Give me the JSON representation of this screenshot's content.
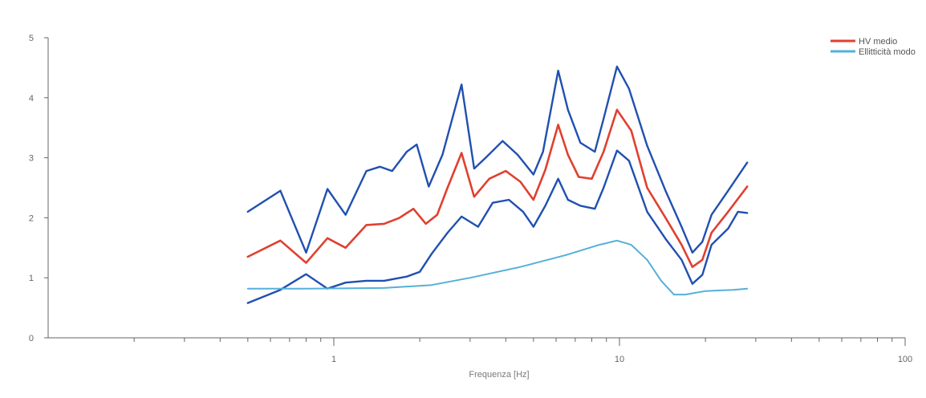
{
  "chart_data": {
    "type": "line",
    "title": "",
    "xlabel": "Frequenza [Hz]",
    "ylabel": "",
    "xscale": "log",
    "xlim": [
      0.1,
      100
    ],
    "ylim": [
      0,
      5
    ],
    "grid": false,
    "legend_position": "top-right",
    "x_ticks": [
      {
        "value": 1,
        "label": "1"
      },
      {
        "value": 10,
        "label": "10"
      },
      {
        "value": 100,
        "label": "100"
      }
    ],
    "y_ticks": [
      {
        "value": 0,
        "label": "0"
      },
      {
        "value": 1,
        "label": "1"
      },
      {
        "value": 2,
        "label": "2"
      },
      {
        "value": 3,
        "label": "3"
      },
      {
        "value": 4,
        "label": "4"
      },
      {
        "value": 5,
        "label": "5"
      }
    ],
    "legend": [
      {
        "label": "HV medio",
        "color": "#e04030"
      },
      {
        "label": "Ellitticità modo",
        "color": "#55b0d8"
      }
    ],
    "series": [
      {
        "name": "HV medio",
        "color": "#e04030",
        "points": [
          [
            0.5,
            1.35
          ],
          [
            0.65,
            1.62
          ],
          [
            0.8,
            1.25
          ],
          [
            0.95,
            1.66
          ],
          [
            1.1,
            1.5
          ],
          [
            1.3,
            1.88
          ],
          [
            1.5,
            1.9
          ],
          [
            1.7,
            2.0
          ],
          [
            1.9,
            2.15
          ],
          [
            2.1,
            1.9
          ],
          [
            2.3,
            2.05
          ],
          [
            2.5,
            2.5
          ],
          [
            2.8,
            3.08
          ],
          [
            3.1,
            2.35
          ],
          [
            3.5,
            2.65
          ],
          [
            4.0,
            2.78
          ],
          [
            4.5,
            2.6
          ],
          [
            5.0,
            2.3
          ],
          [
            5.5,
            2.8
          ],
          [
            6.1,
            3.55
          ],
          [
            6.6,
            3.05
          ],
          [
            7.2,
            2.68
          ],
          [
            8.0,
            2.65
          ],
          [
            8.8,
            3.1
          ],
          [
            9.8,
            3.8
          ],
          [
            11.0,
            3.45
          ],
          [
            12.5,
            2.5
          ],
          [
            14.5,
            2.0
          ],
          [
            16.5,
            1.55
          ],
          [
            18.0,
            1.18
          ],
          [
            19.5,
            1.3
          ],
          [
            21.0,
            1.75
          ],
          [
            24.0,
            2.1
          ],
          [
            28.0,
            2.52
          ]
        ]
      },
      {
        "name": "",
        "color": "#2050b0",
        "points": [
          [
            0.5,
            2.1
          ],
          [
            0.65,
            2.45
          ],
          [
            0.8,
            1.42
          ],
          [
            0.95,
            2.48
          ],
          [
            1.1,
            2.05
          ],
          [
            1.3,
            2.78
          ],
          [
            1.45,
            2.85
          ],
          [
            1.6,
            2.78
          ],
          [
            1.8,
            3.1
          ],
          [
            1.95,
            3.22
          ],
          [
            2.15,
            2.52
          ],
          [
            2.4,
            3.05
          ],
          [
            2.8,
            4.22
          ],
          [
            3.1,
            2.82
          ],
          [
            3.4,
            3.0
          ],
          [
            3.9,
            3.28
          ],
          [
            4.4,
            3.05
          ],
          [
            5.0,
            2.72
          ],
          [
            5.4,
            3.1
          ],
          [
            6.1,
            4.45
          ],
          [
            6.6,
            3.8
          ],
          [
            7.3,
            3.25
          ],
          [
            8.2,
            3.1
          ],
          [
            8.8,
            3.65
          ],
          [
            9.8,
            4.52
          ],
          [
            10.8,
            4.15
          ],
          [
            12.5,
            3.2
          ],
          [
            14.5,
            2.45
          ],
          [
            16.5,
            1.85
          ],
          [
            18.0,
            1.42
          ],
          [
            19.5,
            1.6
          ],
          [
            21.0,
            2.05
          ],
          [
            24.0,
            2.45
          ],
          [
            28.0,
            2.92
          ]
        ]
      },
      {
        "name": "",
        "color": "#2050b0",
        "points": [
          [
            0.5,
            0.58
          ],
          [
            0.65,
            0.8
          ],
          [
            0.8,
            1.06
          ],
          [
            0.95,
            0.82
          ],
          [
            1.1,
            0.92
          ],
          [
            1.3,
            0.95
          ],
          [
            1.5,
            0.95
          ],
          [
            1.8,
            1.02
          ],
          [
            2.0,
            1.1
          ],
          [
            2.2,
            1.4
          ],
          [
            2.5,
            1.75
          ],
          [
            2.8,
            2.02
          ],
          [
            3.2,
            1.85
          ],
          [
            3.6,
            2.25
          ],
          [
            4.1,
            2.3
          ],
          [
            4.6,
            2.1
          ],
          [
            5.0,
            1.85
          ],
          [
            5.5,
            2.2
          ],
          [
            6.1,
            2.65
          ],
          [
            6.6,
            2.3
          ],
          [
            7.3,
            2.2
          ],
          [
            8.2,
            2.15
          ],
          [
            8.8,
            2.5
          ],
          [
            9.8,
            3.12
          ],
          [
            10.8,
            2.95
          ],
          [
            12.5,
            2.1
          ],
          [
            14.5,
            1.65
          ],
          [
            16.5,
            1.3
          ],
          [
            18.0,
            0.9
          ],
          [
            19.5,
            1.05
          ],
          [
            21.0,
            1.55
          ],
          [
            24.0,
            1.82
          ],
          [
            26.0,
            2.1
          ],
          [
            28.0,
            2.08
          ]
        ]
      },
      {
        "name": "Ellitticità modo",
        "color": "#55b0d8",
        "points": [
          [
            0.5,
            0.82
          ],
          [
            0.8,
            0.82
          ],
          [
            1.5,
            0.83
          ],
          [
            2.2,
            0.88
          ],
          [
            3.0,
            1.0
          ],
          [
            4.5,
            1.18
          ],
          [
            6.5,
            1.38
          ],
          [
            8.5,
            1.55
          ],
          [
            9.8,
            1.62
          ],
          [
            11.0,
            1.55
          ],
          [
            12.5,
            1.3
          ],
          [
            14.0,
            0.95
          ],
          [
            15.5,
            0.72
          ],
          [
            17.0,
            0.72
          ],
          [
            20.0,
            0.78
          ],
          [
            25.0,
            0.8
          ],
          [
            28.0,
            0.82
          ]
        ]
      }
    ]
  }
}
